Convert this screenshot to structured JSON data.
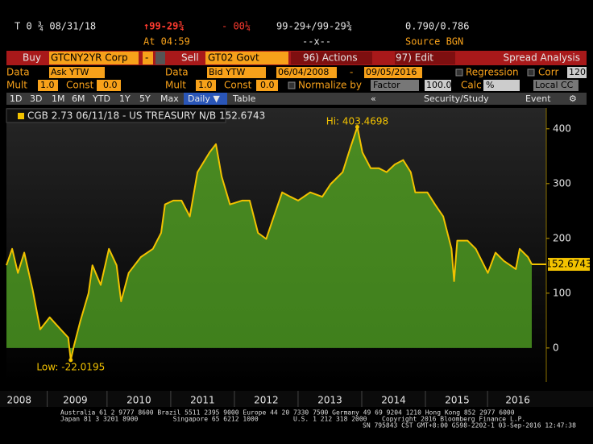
{
  "header": {
    "security": "T 0 ¾  08/31/18",
    "price": "↑99-29¾",
    "change": "- 00¼",
    "bid_ask": "99-29+/99-29¾",
    "yields": "0.790/0.786",
    "time": "At 04:59",
    "size": "--x--",
    "source": "Source BGN"
  },
  "toolbar": {
    "buy_label": "Buy",
    "buy_security": "GTCNY2YR Corp",
    "dash": "-",
    "sell_label": "Sell",
    "sell_security": "GT02 Govt",
    "actions": "96) Actions",
    "edit": "97) Edit",
    "title": "Spread Analysis",
    "data_label_1": "Data",
    "data_field_1": "Ask YTW",
    "data_label_2": "Data",
    "data_field_2": "Bid YTW",
    "start_date": "06/04/2008",
    "date_sep": "-",
    "end_date": "09/05/2016",
    "regression": "Regression",
    "corr": "Corr",
    "corr_value": "120",
    "mult_label_1": "Mult",
    "mult_1": "1.0",
    "const_label_1": "Const",
    "const_1": "0.0",
    "mult_label_2": "Mult",
    "mult_2": "1.0",
    "const_label_2": "Const",
    "const_2": "0.0",
    "normalize": "Normalize by",
    "factor": "Factor",
    "factor_value": "100.0",
    "calc": "Calc",
    "calc_value": "%",
    "currency": "Local CC",
    "periods": [
      "1D",
      "3D",
      "1M",
      "6M",
      "YTD",
      "1Y",
      "5Y",
      "Max"
    ],
    "frequency": "Daily ▼",
    "table": "Table",
    "back": "«",
    "study": "Security/Study",
    "event": "Event"
  },
  "chart_data": {
    "type": "area",
    "x": [
      2008.42,
      2008.51,
      2008.6,
      2008.7,
      2008.83,
      2008.95,
      2009.1,
      2009.27,
      2009.39,
      2009.43,
      2009.48,
      2009.58,
      2009.71,
      2009.77,
      2009.9,
      2010.03,
      2010.15,
      2010.22,
      2010.34,
      2010.53,
      2010.72,
      2010.85,
      2010.91,
      2011.04,
      2011.17,
      2011.3,
      2011.42,
      2011.61,
      2011.71,
      2011.8,
      2011.93,
      2012.12,
      2012.24,
      2012.37,
      2012.5,
      2012.62,
      2012.75,
      2012.88,
      2013.0,
      2013.19,
      2013.38,
      2013.51,
      2013.7,
      2013.82,
      2013.93,
      2014.01,
      2014.14,
      2014.27,
      2014.39,
      2014.52,
      2014.65,
      2014.77,
      2014.84,
      2015.03,
      2015.15,
      2015.28,
      2015.41,
      2015.45,
      2015.5,
      2015.66,
      2015.79,
      2015.98,
      2016.1,
      2016.23,
      2016.42,
      2016.48,
      2016.61,
      2016.67
    ],
    "series": [
      {
        "name": "CGB 2.73 06/11/18 - US TREASURY N/B 152.6743",
        "color": "#f2c200",
        "values": [
          151,
          181,
          137,
          174,
          107,
          34,
          56,
          34,
          19,
          -22.0195,
          4,
          49,
          100,
          151,
          115,
          181,
          151,
          85,
          137,
          166,
          181,
          210,
          262,
          269,
          269,
          240,
          321,
          357,
          372,
          313,
          262,
          269,
          269,
          210,
          199,
          240,
          284,
          276,
          269,
          284,
          276,
          299,
          321,
          365,
          403.4698,
          357,
          328,
          328,
          321,
          335,
          343,
          321,
          284,
          284,
          262,
          240,
          181,
          122,
          196,
          196,
          181,
          137,
          174,
          159,
          144,
          181,
          166,
          152.6743
        ]
      }
    ],
    "annotations": {
      "high": "Hi: 403.4698",
      "low": "Low: -22.0195",
      "last": "152.6743"
    },
    "xlim": [
      2008.42,
      2016.67
    ],
    "ylim": [
      -62,
      438
    ],
    "yticks": [
      0,
      100,
      200,
      300,
      400
    ],
    "xticks": [
      {
        "value": 2008.62,
        "label": "2008"
      },
      {
        "value": 2009.5,
        "label": "2009"
      },
      {
        "value": 2010.5,
        "label": "2010"
      },
      {
        "value": 2011.5,
        "label": "2011"
      },
      {
        "value": 2012.5,
        "label": "2012"
      },
      {
        "value": 2013.5,
        "label": "2013"
      },
      {
        "value": 2014.5,
        "label": "2014"
      },
      {
        "value": 2015.5,
        "label": "2015"
      },
      {
        "value": 2016.45,
        "label": "2016"
      }
    ],
    "fill_color": "#4f8f25"
  },
  "footer": {
    "line1": "Australia 61 2 9777 8600 Brazil 5511 2395 9000 Europe 44 20 7330 7500 Germany 49 69 9204 1210 Hong Kong 852 2977 6000",
    "line2a": "Japan 81 3 3201 8900         Singapore 65 6212 1000         U.S. 1 212 318 2000",
    "line2b": "Copyright 2016 Bloomberg Finance L.P.",
    "line3": "SN 795843 CST  GMT+8:00 G598-2202-1 03-Sep-2016 12:47:38"
  }
}
